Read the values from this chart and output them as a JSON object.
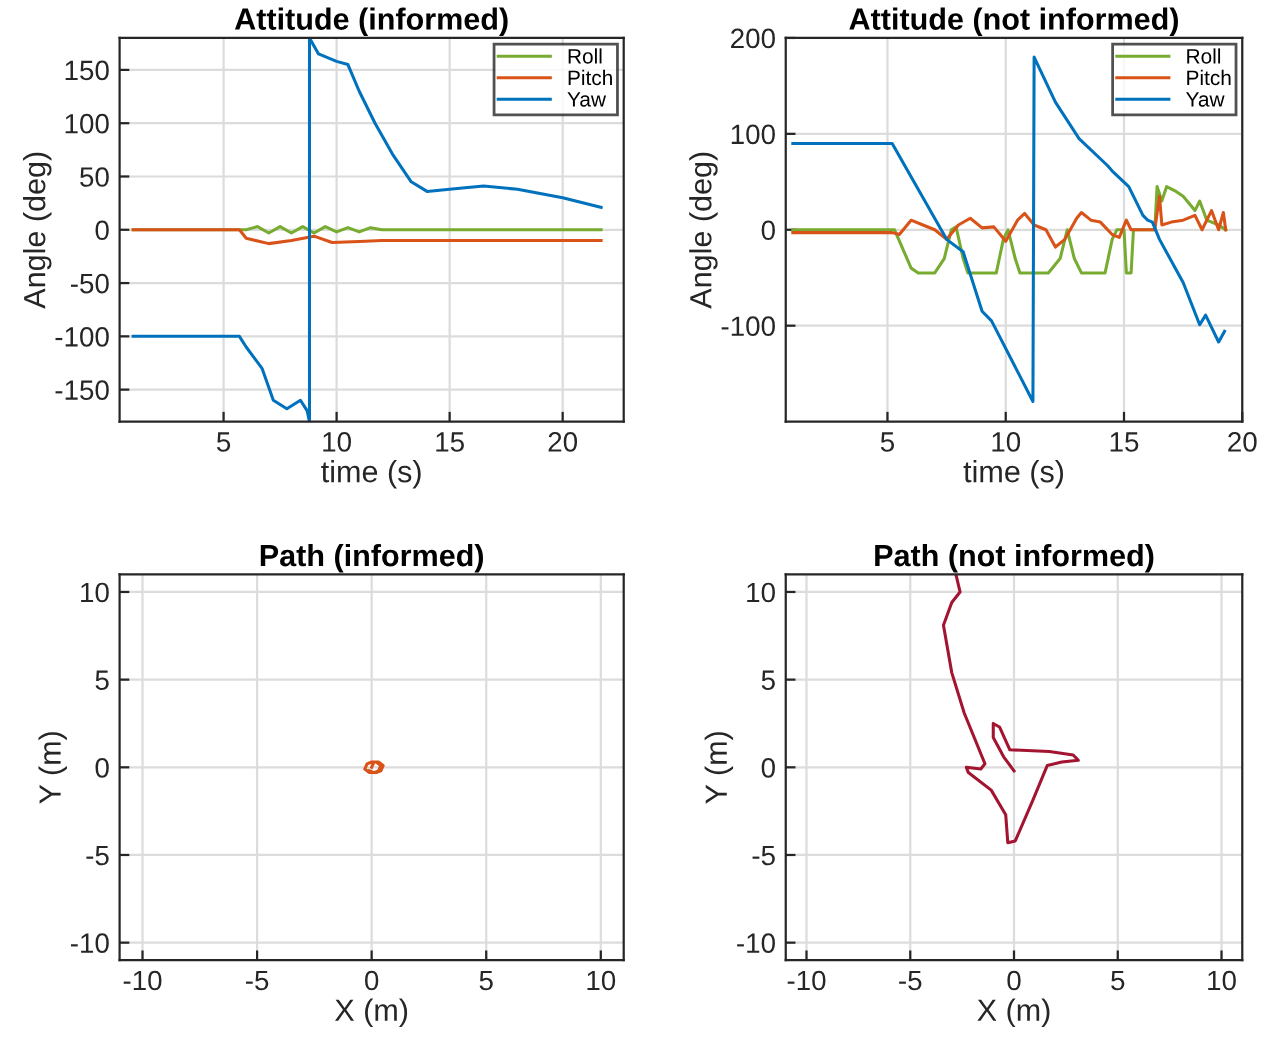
{
  "chart_data": [
    {
      "type": "line",
      "title": "Attitude (informed)",
      "xlabel": "time (s)",
      "ylabel": "Angle (deg)",
      "xlim": [
        0.4,
        22.7
      ],
      "xticks": [
        5,
        10,
        15,
        20
      ],
      "ylim": [
        -180,
        180
      ],
      "yticks": [
        -150,
        -100,
        -50,
        0,
        50,
        100,
        150
      ],
      "grid": true,
      "legend": "top right",
      "series": [
        {
          "name": "Roll",
          "color": "#77ac30",
          "x": [
            1,
            6,
            6.5,
            7,
            7.5,
            8,
            8.5,
            9,
            9.5,
            10,
            10.5,
            11,
            11.5,
            12,
            13,
            21.7
          ],
          "values": [
            0,
            0,
            3,
            -3,
            3,
            -3,
            3,
            -3,
            3,
            -2,
            2,
            -2,
            2,
            0,
            0,
            0
          ]
        },
        {
          "name": "Pitch",
          "color": "#d95319",
          "x": [
            1,
            5.7,
            6,
            7,
            8,
            9,
            9.8,
            11,
            12,
            15,
            21.7
          ],
          "values": [
            0,
            0,
            -8,
            -13,
            -10,
            -6,
            -12,
            -11,
            -10,
            -10,
            -10
          ]
        },
        {
          "name": "Yaw",
          "color": "#0072bd",
          "x": [
            1,
            5.7,
            6,
            6.7,
            7.2,
            7.8,
            8.4,
            8.7,
            8.8,
            8.8,
            9.2,
            10,
            10.5,
            11,
            11.7,
            12.5,
            13.3,
            14,
            15,
            16.5,
            18,
            20,
            21.7
          ],
          "values": [
            -100,
            -100,
            -110,
            -130,
            -160,
            -168,
            -160,
            -170,
            -180,
            180,
            165,
            158,
            155,
            130,
            100,
            70,
            45,
            36,
            38,
            41,
            38,
            30,
            21
          ]
        }
      ]
    },
    {
      "type": "line",
      "title": "Attitude (not informed)",
      "xlabel": "time (s)",
      "ylabel": "Angle (deg)",
      "xlim": [
        0.7,
        20
      ],
      "xticks": [
        5,
        10,
        15,
        20
      ],
      "ylim": [
        -200,
        200
      ],
      "yticks": [
        -100,
        0,
        100,
        200
      ],
      "grid": true,
      "legend": "top right",
      "series": [
        {
          "name": "Roll",
          "color": "#77ac30",
          "x": [
            1,
            5.3,
            6,
            6.3,
            7,
            7.4,
            7.7,
            7.9,
            8.2,
            8.4,
            9.6,
            9.9,
            10.1,
            10.4,
            10.6,
            11.8,
            12.3,
            12.6,
            12.9,
            13.2,
            14.2,
            14.5,
            14.7,
            15,
            15.1,
            15.3,
            15.4,
            16.3,
            16.4,
            16.6,
            16.8,
            17.2,
            17.5,
            18,
            18.2,
            18.5,
            19,
            19.3
          ],
          "values": [
            0,
            0,
            -40,
            -45,
            -45,
            -30,
            0,
            3,
            -30,
            -45,
            -45,
            -10,
            0,
            -30,
            -45,
            -45,
            -30,
            0,
            -30,
            -45,
            -45,
            -10,
            0,
            0,
            -45,
            -45,
            0,
            0,
            45,
            30,
            45,
            40,
            35,
            20,
            30,
            10,
            5,
            0
          ]
        },
        {
          "name": "Pitch",
          "color": "#d95319",
          "x": [
            1,
            5.2,
            5.5,
            6,
            6.5,
            7,
            7.5,
            8,
            8.5,
            9,
            9.5,
            10,
            10.5,
            10.8,
            11.2,
            11.7,
            12.1,
            12.5,
            13,
            13.2,
            13.6,
            14,
            14.5,
            14.8,
            15.1,
            15.3,
            16.3,
            16.5,
            16.6,
            17,
            17.5,
            18,
            18.3,
            18.7,
            19,
            19.2,
            19.3
          ],
          "values": [
            -3,
            -3,
            -5,
            10,
            5,
            0,
            -10,
            5,
            12,
            2,
            3,
            -12,
            10,
            17,
            5,
            0,
            -18,
            -10,
            12,
            18,
            10,
            8,
            -5,
            -8,
            10,
            0,
            0,
            35,
            5,
            8,
            10,
            15,
            0,
            20,
            0,
            18,
            0
          ]
        },
        {
          "name": "Yaw",
          "color": "#0072bd",
          "x": [
            1,
            5.1,
            5.2,
            7.5,
            8.2,
            9,
            9.4,
            11.15,
            11.2,
            12.1,
            13.1,
            14.3,
            14.55,
            15.2,
            15.8,
            16,
            16.2,
            16.5,
            17.5,
            18.2,
            18.45,
            19,
            19.25
          ],
          "values": [
            90,
            90,
            90,
            -10,
            -23,
            -85,
            -95,
            -179,
            180,
            133,
            95,
            67,
            60,
            45,
            15,
            10,
            8,
            -10,
            -55,
            -99,
            -89,
            -117,
            -106
          ]
        }
      ]
    },
    {
      "type": "line",
      "title": "Path (informed)",
      "xlabel": "X (m)",
      "ylabel": "Y (m)",
      "xlim": [
        -11,
        11
      ],
      "xticks": [
        -10,
        -5,
        0,
        5,
        10
      ],
      "ylim": [
        -11,
        11
      ],
      "yticks": [
        -10,
        -5,
        0,
        5,
        10
      ],
      "grid": true,
      "series": [
        {
          "color": "#d95319",
          "x": [
            0,
            0.1,
            0.3,
            0.5,
            0.4,
            0.2,
            -0.1,
            -0.3,
            -0.2,
            0,
            0.2,
            0.4,
            0.3,
            0.1,
            -0.1
          ],
          "values": [
            0,
            0.3,
            0.3,
            0.1,
            -0.2,
            -0.3,
            -0.3,
            -0.1,
            0.2,
            0.3,
            0.3,
            0.1,
            -0.2,
            -0.3,
            -0.2
          ]
        }
      ]
    },
    {
      "type": "line",
      "title": "Path (not informed)",
      "xlabel": "X (m)",
      "ylabel": "Y (m)",
      "xlim": [
        -11,
        11
      ],
      "xticks": [
        -10,
        -5,
        0,
        5,
        10
      ],
      "ylim": [
        -11,
        11
      ],
      "yticks": [
        -10,
        -5,
        0,
        5,
        10
      ],
      "grid": true,
      "series": [
        {
          "color": "#a2142f",
          "x": [
            -2.8,
            -2.6,
            -3.0,
            -3.4,
            -3.0,
            -2.4,
            -1.4,
            -1.6,
            -2.3,
            -2.2,
            -1.1,
            -0.4,
            -0.3,
            0.06,
            0.9,
            1.6,
            2.3,
            3.1,
            2.85,
            1.7,
            -0.2,
            -0.7,
            -1.0,
            -1.0,
            -0.5,
            0
          ],
          "values": [
            11,
            10,
            9.4,
            8.1,
            5.4,
            3.1,
            0.2,
            -0.1,
            0,
            -0.3,
            -1.3,
            -2.7,
            -4.3,
            -4.2,
            -1.9,
            0.1,
            0.3,
            0.4,
            0.7,
            0.9,
            1.0,
            2.3,
            2.5,
            1.7,
            0.6,
            -0.2
          ]
        }
      ]
    }
  ]
}
